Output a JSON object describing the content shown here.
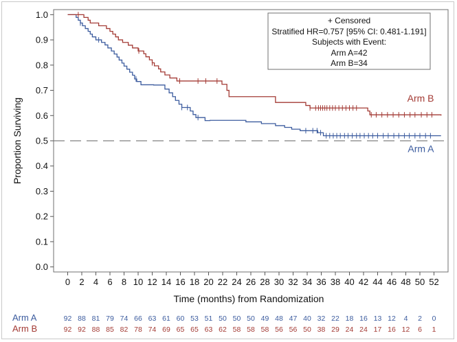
{
  "chart_data": {
    "type": "line",
    "xlabel": "Time (months) from Randomization",
    "ylabel": "Proportion Surviving",
    "xlim": [
      -2,
      54
    ],
    "ylim": [
      -0.02,
      1.02
    ],
    "x_ticks": [
      0,
      2,
      4,
      6,
      8,
      10,
      12,
      14,
      16,
      18,
      20,
      22,
      24,
      26,
      28,
      30,
      32,
      34,
      36,
      38,
      40,
      42,
      44,
      46,
      48,
      50,
      52
    ],
    "x_tick_labels": [
      "0",
      "2",
      "4",
      "6",
      "8",
      "10",
      "12",
      "14",
      "16",
      "18",
      "20",
      "22",
      "24",
      "26",
      "28",
      "30",
      "32",
      "34",
      "36",
      "38",
      "40",
      "42",
      "44",
      "46",
      "48",
      "50",
      "52"
    ],
    "y_ticks": [
      0.0,
      0.1,
      0.2,
      0.3,
      0.4,
      0.5,
      0.6,
      0.7,
      0.8,
      0.9,
      1.0
    ],
    "y_tick_labels": [
      "0.0",
      "0.1",
      "0.2",
      "0.3",
      "0.4",
      "0.5",
      "0.6",
      "0.7",
      "0.8",
      "0.9",
      "1.0"
    ],
    "reference_line": {
      "y": 0.5,
      "style": "dashed",
      "color": "#7f7f7f"
    },
    "legend": {
      "placement": "top-right",
      "lines": [
        "+ Censored",
        "Stratified HR=0.757 [95% CI: 0.481-1.191]",
        "Subjects with Event:",
        "Arm A=42",
        "Arm B=34"
      ]
    },
    "series": [
      {
        "name": "Arm A",
        "color": "#3b5b9e",
        "label_point": [
          52,
          0.455
        ],
        "steps": [
          [
            0,
            1.0
          ],
          [
            1.2,
            0.989
          ],
          [
            1.5,
            0.978
          ],
          [
            1.8,
            0.967
          ],
          [
            2.1,
            0.956
          ],
          [
            2.5,
            0.945
          ],
          [
            2.9,
            0.934
          ],
          [
            3.2,
            0.923
          ],
          [
            3.5,
            0.912
          ],
          [
            4.0,
            0.9
          ],
          [
            4.8,
            0.89
          ],
          [
            5.3,
            0.88
          ],
          [
            5.7,
            0.868
          ],
          [
            6.2,
            0.856
          ],
          [
            6.6,
            0.844
          ],
          [
            7.0,
            0.832
          ],
          [
            7.3,
            0.82
          ],
          [
            7.7,
            0.808
          ],
          [
            8.0,
            0.796
          ],
          [
            8.4,
            0.784
          ],
          [
            8.8,
            0.772
          ],
          [
            9.2,
            0.76
          ],
          [
            9.5,
            0.745
          ],
          [
            9.8,
            0.735
          ],
          [
            10.4,
            0.722
          ],
          [
            12.2,
            0.721
          ],
          [
            13.8,
            0.705
          ],
          [
            14.4,
            0.69
          ],
          [
            14.9,
            0.675
          ],
          [
            15.3,
            0.66
          ],
          [
            15.8,
            0.645
          ],
          [
            16.2,
            0.632
          ],
          [
            17.4,
            0.618
          ],
          [
            17.8,
            0.604
          ],
          [
            18.2,
            0.592
          ],
          [
            19.5,
            0.58
          ],
          [
            20.2,
            0.581
          ],
          [
            25.3,
            0.575
          ],
          [
            27.5,
            0.568
          ],
          [
            29.5,
            0.56
          ],
          [
            30.8,
            0.553
          ],
          [
            31.8,
            0.546
          ],
          [
            33.0,
            0.54
          ],
          [
            35.5,
            0.532
          ],
          [
            36.3,
            0.52
          ],
          [
            53,
            0.52
          ]
        ],
        "censor_times": [
          1.8,
          4.4,
          9.7,
          16.2,
          17.0,
          18.5,
          33.8,
          34.8,
          35.4,
          35.9,
          36.7,
          37.2,
          37.7,
          38.2,
          38.7,
          39.3,
          39.8,
          40.4,
          41.0,
          41.5,
          42.1,
          42.7,
          43.3,
          44.0,
          44.8,
          45.5,
          46.3,
          47.0,
          47.8,
          48.5,
          49.3,
          50.0,
          50.8,
          51.5
        ]
      },
      {
        "name": "Arm B",
        "color": "#a33a34",
        "label_point": [
          52,
          0.655
        ],
        "steps": [
          [
            0,
            1.0
          ],
          [
            2.3,
            0.989
          ],
          [
            2.9,
            0.978
          ],
          [
            3.2,
            0.967
          ],
          [
            4.4,
            0.956
          ],
          [
            5.5,
            0.945
          ],
          [
            6.0,
            0.934
          ],
          [
            6.4,
            0.923
          ],
          [
            6.8,
            0.912
          ],
          [
            7.2,
            0.9
          ],
          [
            7.8,
            0.89
          ],
          [
            8.6,
            0.879
          ],
          [
            9.2,
            0.868
          ],
          [
            10.0,
            0.856
          ],
          [
            10.8,
            0.845
          ],
          [
            11.1,
            0.833
          ],
          [
            11.6,
            0.821
          ],
          [
            12.0,
            0.809
          ],
          [
            12.3,
            0.797
          ],
          [
            12.9,
            0.785
          ],
          [
            13.2,
            0.773
          ],
          [
            13.8,
            0.761
          ],
          [
            14.5,
            0.749
          ],
          [
            15.5,
            0.737
          ],
          [
            21.9,
            0.724
          ],
          [
            22.6,
            0.7
          ],
          [
            22.9,
            0.675
          ],
          [
            29.5,
            0.652
          ],
          [
            33.8,
            0.64
          ],
          [
            34.4,
            0.63
          ],
          [
            42.6,
            0.618
          ],
          [
            42.9,
            0.603
          ],
          [
            53,
            0.6
          ]
        ],
        "censor_times": [
          1.5,
          10.1,
          12.0,
          15.9,
          18.5,
          19.6,
          21.2,
          34.4,
          35.2,
          35.6,
          35.9,
          36.2,
          36.5,
          36.8,
          37.2,
          37.6,
          38.0,
          38.5,
          39.0,
          39.5,
          40.0,
          40.5,
          41.0,
          43.1,
          43.8,
          44.6,
          45.4,
          46.2,
          47.0,
          47.8,
          48.6,
          49.3,
          50.2,
          51.0,
          51.7
        ]
      }
    ],
    "at_risk": {
      "times": [
        0,
        2,
        4,
        6,
        8,
        10,
        12,
        14,
        16,
        18,
        20,
        22,
        24,
        26,
        28,
        30,
        32,
        34,
        36,
        38,
        40,
        42,
        44,
        46,
        48,
        50,
        52
      ],
      "rows": [
        {
          "label": "Arm A",
          "color": "#3b5b9e",
          "values": [
            "92",
            "88",
            "81",
            "79",
            "74",
            "66",
            "63",
            "61",
            "60",
            "53",
            "51",
            "50",
            "50",
            "50",
            "49",
            "48",
            "47",
            "40",
            "32",
            "22",
            "18",
            "16",
            "13",
            "12",
            "4",
            "2",
            "0"
          ]
        },
        {
          "label": "Arm B",
          "color": "#a33a34",
          "values": [
            "92",
            "92",
            "88",
            "85",
            "82",
            "78",
            "74",
            "69",
            "65",
            "65",
            "63",
            "62",
            "58",
            "58",
            "58",
            "56",
            "56",
            "50",
            "38",
            "29",
            "24",
            "24",
            "17",
            "16",
            "12",
            "6",
            "1"
          ]
        }
      ]
    }
  }
}
